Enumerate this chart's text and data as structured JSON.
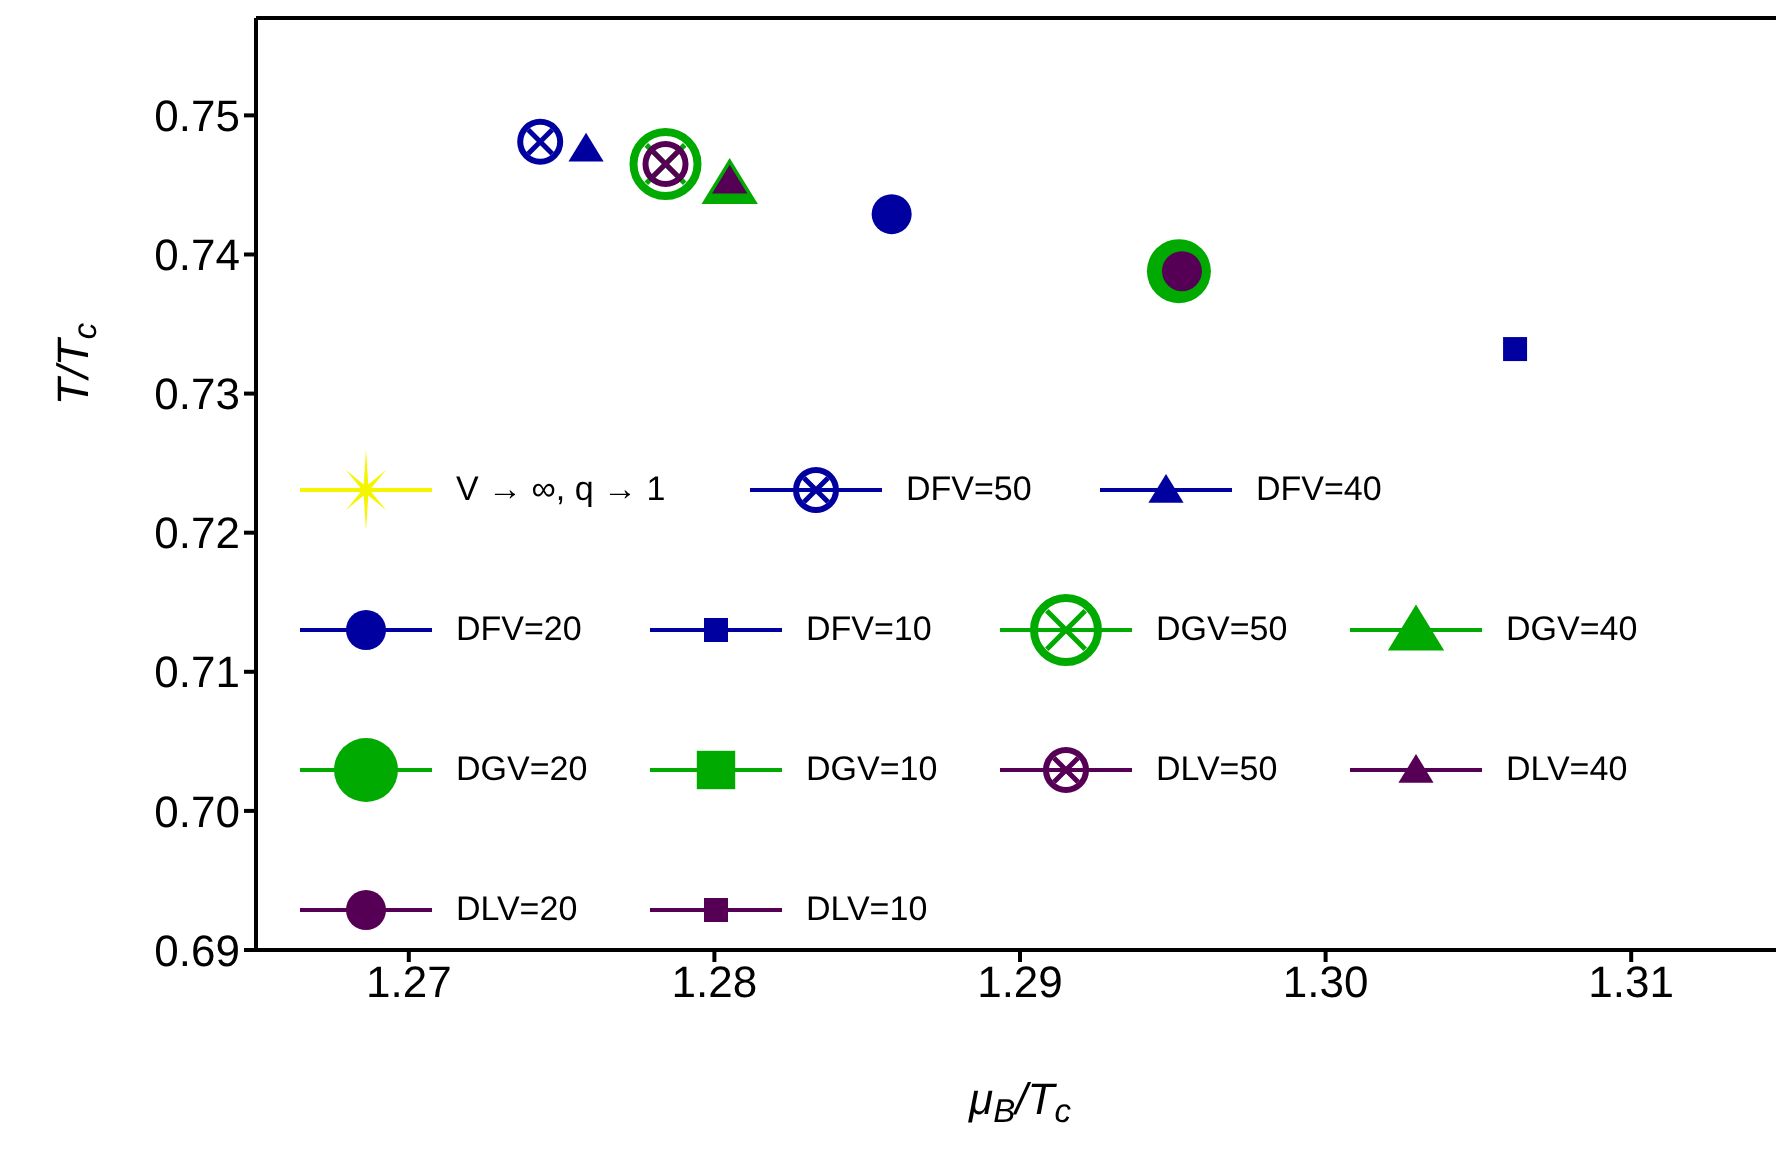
{
  "chart_data": {
    "type": "scatter",
    "xlabel": "μ$_{B}$/T$_{c}$",
    "ylabel": "T/T$_{c}$",
    "xlim": [
      1.265,
      1.315
    ],
    "xticks": [
      1.27,
      1.28,
      1.29,
      {
        "value": 1.3,
        "label": "1.30"
      },
      1.31
    ],
    "ylim": [
      0.69,
      0.757
    ],
    "yticks": [
      0.69,
      {
        "value": 0.7,
        "label": "0.70"
      },
      0.71,
      0.72,
      0.73,
      0.74,
      0.75
    ],
    "legend": "bottom left",
    "series": [
      {
        "name": "V → ∞, q → 1",
        "color": "#f5f500",
        "marker": "star",
        "x": [
          null
        ],
        "values": [
          null
        ]
      },
      {
        "name": "DFV=50",
        "color": "#0000a0",
        "x": [
          1.2743
        ],
        "values": [
          0.7481
        ]
      },
      {
        "name": "DFV=40",
        "color": "#0000a0",
        "marker": "triangle",
        "x": [
          1.2758
        ],
        "values": [
          0.7476
        ]
      },
      {
        "name": "DFV=20",
        "color": "#0000a0",
        "marker": "circle",
        "x": [
          1.2858
        ],
        "values": [
          0.7429
        ]
      },
      {
        "name": "DFV=10",
        "color": "#0000a0",
        "marker": "square",
        "x": [
          1.3062
        ],
        "values": [
          0.7332
        ]
      },
      {
        "name": "DGV=50",
        "color": "#00aa00",
        "x": [
          1.2784
        ],
        "values": [
          0.7465
        ]
      },
      {
        "name": "DGV=40",
        "color": "#00aa00",
        "marker": "triangle",
        "x": [
          1.2805
        ],
        "values": [
          0.7451
        ]
      },
      {
        "name": "DGV=20",
        "color": "#00aa00",
        "marker": "circle",
        "x": [
          1.2952
        ],
        "values": [
          0.7388
        ]
      },
      {
        "name": "DGV=10",
        "color": "#00aa00",
        "marker": "square",
        "x": [
          null
        ],
        "values": [
          null
        ]
      },
      {
        "name": "DLV=50",
        "color": "#550055",
        "x": [
          1.2784
        ],
        "values": [
          0.7465
        ]
      },
      {
        "name": "DLV=40",
        "color": "#550055",
        "marker": "triangle",
        "x": [
          1.2805
        ],
        "values": [
          0.7453
        ]
      },
      {
        "name": "DLV=20",
        "color": "#550055",
        "marker": "circle",
        "x": [
          1.2953
        ],
        "values": [
          0.7388
        ]
      },
      {
        "name": "DLV=10",
        "color": "#550055",
        "marker": "square",
        "x": [
          null
        ],
        "values": [
          null
        ]
      }
    ]
  }
}
